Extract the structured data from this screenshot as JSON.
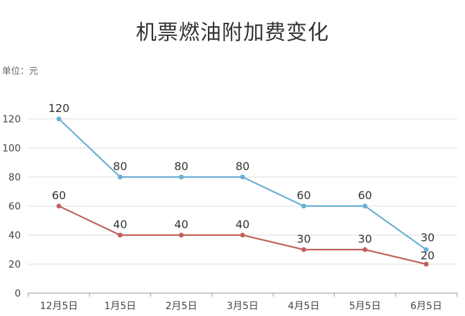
{
  "chart_data": {
    "type": "line",
    "title": "机票燃油附加费变化",
    "unit_label": "单位：元",
    "categories": [
      "12月5日",
      "1月5日",
      "2月5日",
      "3月5日",
      "4月5日",
      "5月5日",
      "6月5日"
    ],
    "series": [
      {
        "values": [
          120,
          80,
          80,
          80,
          60,
          60,
          30
        ],
        "color": "#6ab0d4"
      },
      {
        "values": [
          60,
          40,
          40,
          40,
          30,
          30,
          20
        ],
        "color": "#c0625a"
      }
    ],
    "yticks": [
      0,
      20,
      40,
      60,
      80,
      100,
      120
    ],
    "ylim": [
      0,
      120
    ],
    "grid": true,
    "legend": "none"
  }
}
